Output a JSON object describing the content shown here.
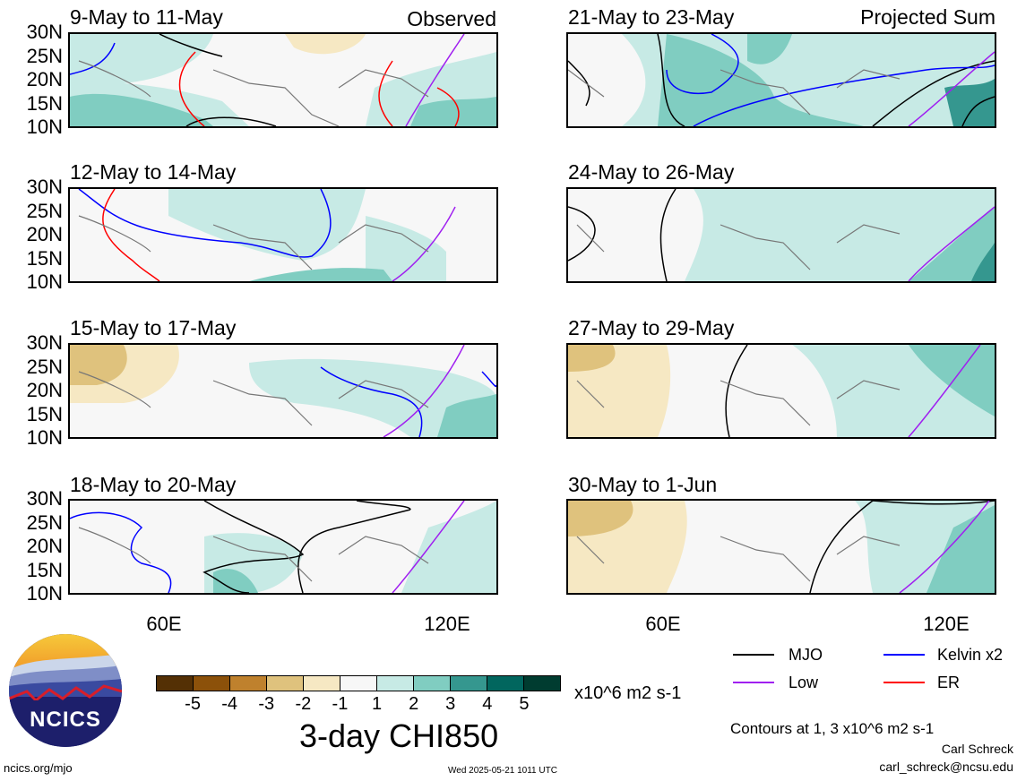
{
  "panels": [
    {
      "title": "9-May to 11-May",
      "tag": "Observed"
    },
    {
      "title": "21-May to 23-May",
      "tag": "Projected Sum"
    },
    {
      "title": "12-May to 14-May",
      "tag": ""
    },
    {
      "title": "24-May to 26-May",
      "tag": ""
    },
    {
      "title": "15-May to 17-May",
      "tag": ""
    },
    {
      "title": "27-May to 29-May",
      "tag": ""
    },
    {
      "title": "18-May to 20-May",
      "tag": ""
    },
    {
      "title": "30-May to 1-Jun",
      "tag": ""
    }
  ],
  "lat_labels": [
    "30N",
    "25N",
    "20N",
    "15N",
    "10N"
  ],
  "lon_labels": [
    "60E",
    "120E"
  ],
  "colorbar": {
    "colors": [
      "#543005",
      "#8c510a",
      "#bf812d",
      "#dfc27d",
      "#f6e8c3",
      "#f7f7f7",
      "#c7eae5",
      "#80cdc1",
      "#35978f",
      "#01665e",
      "#003c30"
    ],
    "labels": [
      "-5",
      "-4",
      "-3",
      "-2",
      "-1",
      "1",
      "2",
      "3",
      "4",
      "5"
    ],
    "units": "x10^6 m2 s-1"
  },
  "title": "3-day CHI850",
  "legend": [
    {
      "label": "MJO",
      "color": "#000000"
    },
    {
      "label": "Kelvin x2",
      "color": "#0000ff"
    },
    {
      "label": "Low",
      "color": "#a020f0"
    },
    {
      "label": "ER",
      "color": "#ff0000"
    }
  ],
  "contour_note": "Contours at 1, 3 x10^6 m2 s-1",
  "author": "Carl Schreck",
  "email": "carl_schreck@ncsu.edu",
  "site": "ncics.org/mjo",
  "timestamp": "Wed 2025-05-21 1011 UTC",
  "logo_text": "NCICS"
}
